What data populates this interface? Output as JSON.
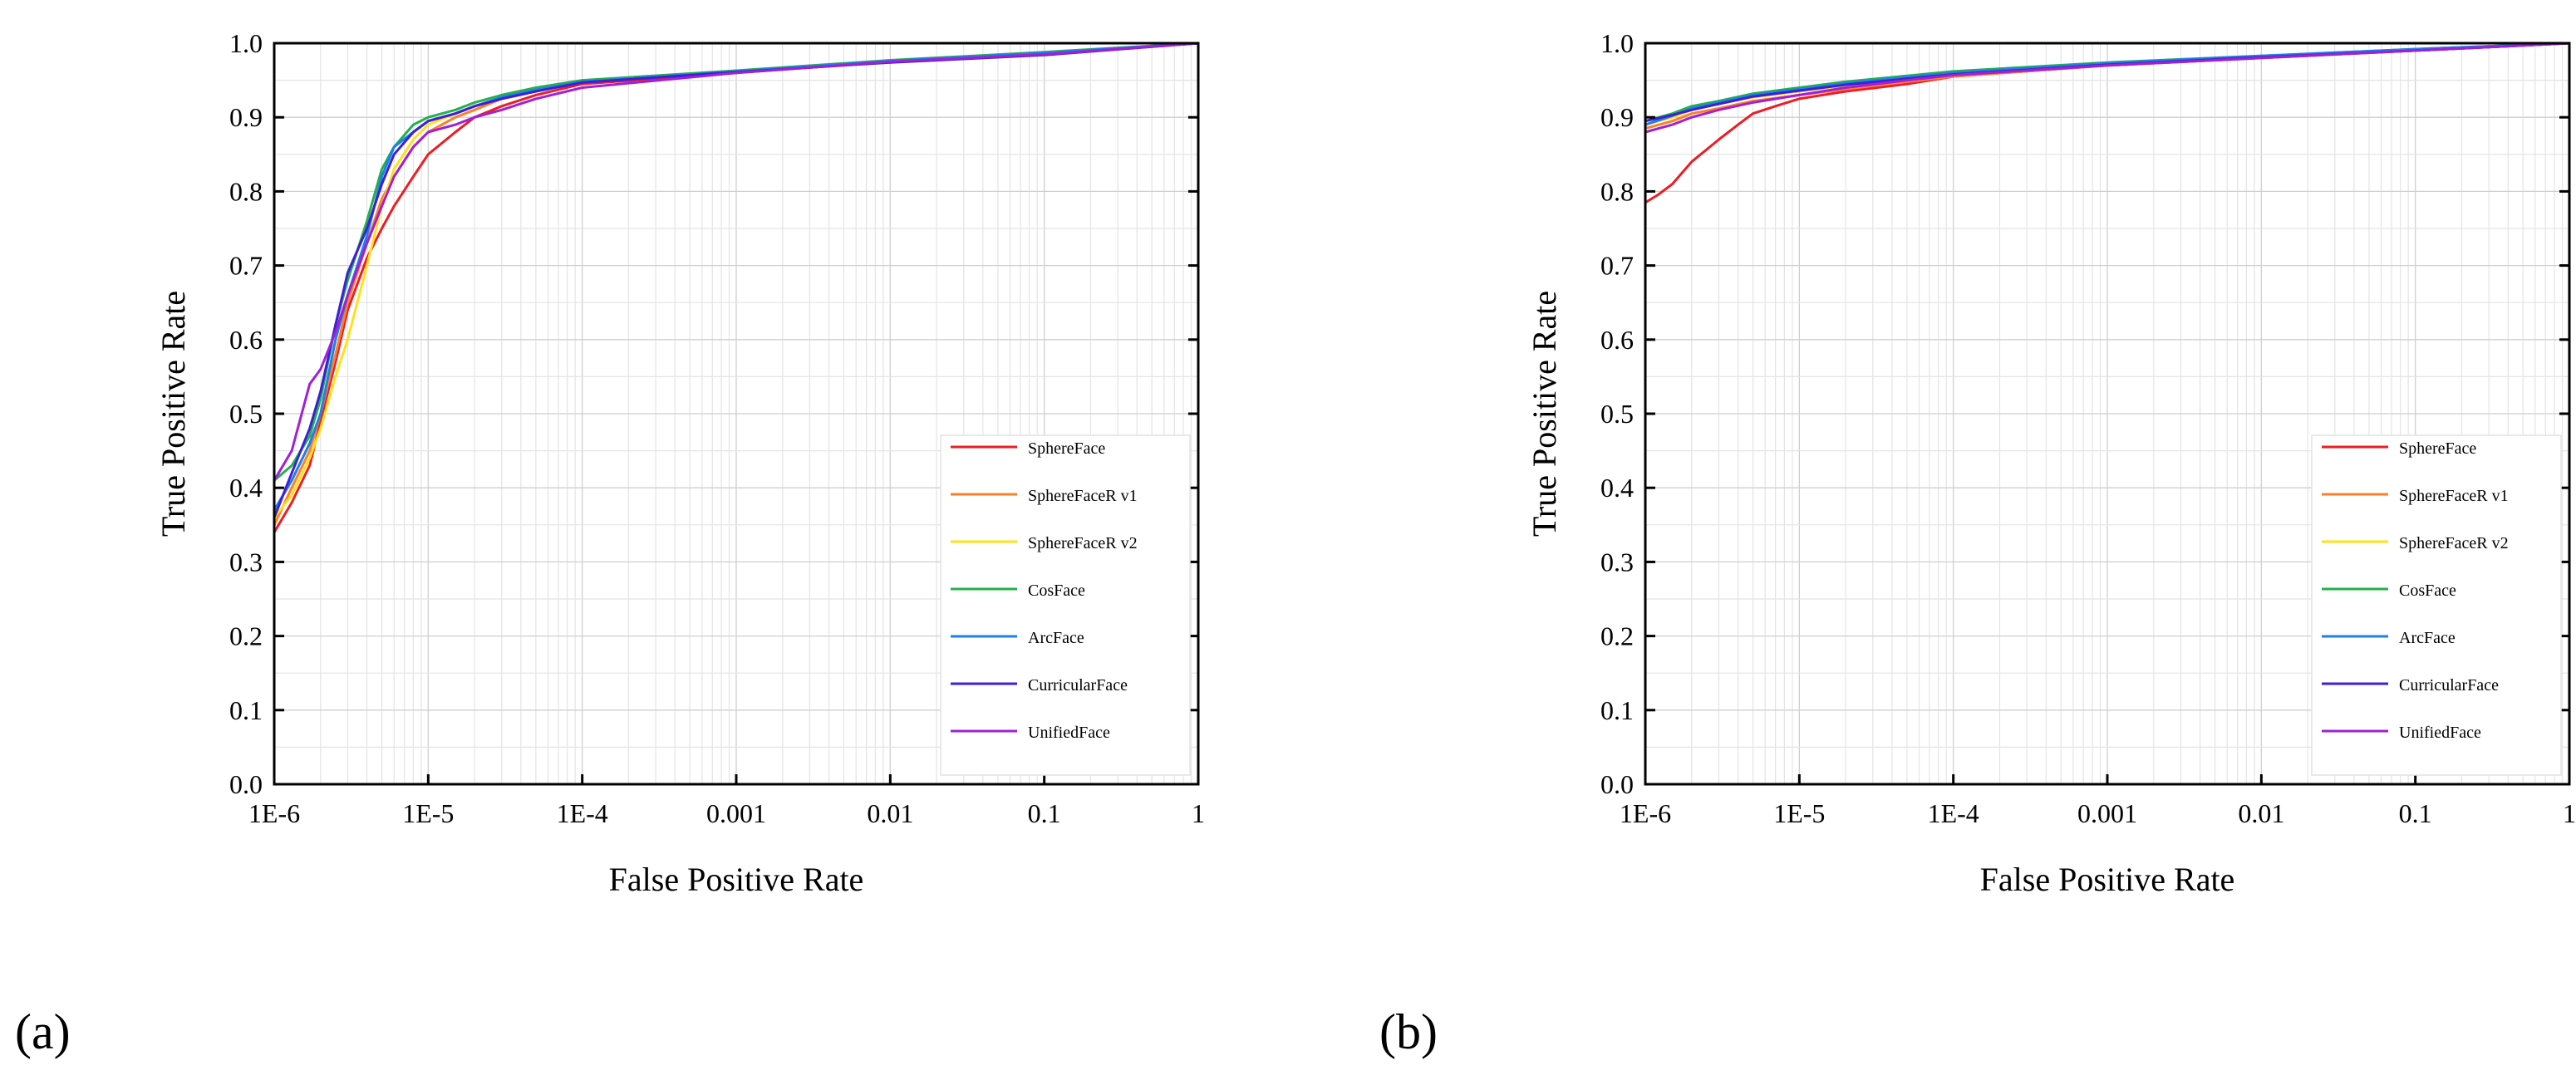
{
  "chart_data": [
    {
      "type": "line",
      "panel_label": "(a)",
      "xlabel": "False Positive Rate",
      "ylabel": "True Positive Rate",
      "xscale": "log",
      "xlim": [
        1e-06,
        1
      ],
      "ylim": [
        0.0,
        1.0
      ],
      "x_ticks": [
        {
          "value": 1e-06,
          "label": "1E-6"
        },
        {
          "value": 1e-05,
          "label": "1E-5"
        },
        {
          "value": 0.0001,
          "label": "1E-4"
        },
        {
          "value": 0.001,
          "label": "0.001"
        },
        {
          "value": 0.01,
          "label": "0.01"
        },
        {
          "value": 0.1,
          "label": "0.1"
        },
        {
          "value": 1,
          "label": "1"
        }
      ],
      "y_ticks": [
        {
          "value": 0.0,
          "label": "0.0"
        },
        {
          "value": 0.1,
          "label": "0.1"
        },
        {
          "value": 0.2,
          "label": "0.2"
        },
        {
          "value": 0.3,
          "label": "0.3"
        },
        {
          "value": 0.4,
          "label": "0.4"
        },
        {
          "value": 0.5,
          "label": "0.5"
        },
        {
          "value": 0.6,
          "label": "0.6"
        },
        {
          "value": 0.7,
          "label": "0.7"
        },
        {
          "value": 0.8,
          "label": "0.8"
        },
        {
          "value": 0.9,
          "label": "0.9"
        },
        {
          "value": 1.0,
          "label": "1.0"
        }
      ],
      "grid": true,
      "legend_position": "lower-right",
      "series": [
        {
          "name": "SphereFace",
          "color": "#ee1c25",
          "x": [
            1e-06,
            1.3e-06,
            1.7e-06,
            2e-06,
            2.5e-06,
            3e-06,
            4e-06,
            5e-06,
            6e-06,
            8e-06,
            1e-05,
            1.5e-05,
            2e-05,
            3e-05,
            5e-05,
            0.0001,
            0.001,
            0.01,
            0.1,
            1
          ],
          "y": [
            0.34,
            0.38,
            0.43,
            0.49,
            0.57,
            0.64,
            0.71,
            0.75,
            0.78,
            0.82,
            0.85,
            0.88,
            0.9,
            0.915,
            0.93,
            0.945,
            0.96,
            0.975,
            0.985,
            1.0
          ]
        },
        {
          "name": "SphereFaceR v1",
          "color": "#ff7f27",
          "x": [
            1e-06,
            1.3e-06,
            1.7e-06,
            2e-06,
            2.5e-06,
            3e-06,
            4e-06,
            5e-06,
            6e-06,
            8e-06,
            1e-05,
            1.5e-05,
            2e-05,
            3e-05,
            5e-05,
            0.0001,
            0.001,
            0.01,
            0.1,
            1
          ],
          "y": [
            0.35,
            0.4,
            0.45,
            0.5,
            0.58,
            0.65,
            0.73,
            0.79,
            0.82,
            0.86,
            0.88,
            0.9,
            0.91,
            0.925,
            0.935,
            0.948,
            0.962,
            0.975,
            0.985,
            1.0
          ]
        },
        {
          "name": "SphereFaceR v2",
          "color": "#ffe119",
          "x": [
            1e-06,
            1.3e-06,
            1.7e-06,
            2e-06,
            2.5e-06,
            3e-06,
            4e-06,
            5e-06,
            6e-06,
            8e-06,
            1e-05,
            1.5e-05,
            2e-05,
            3e-05,
            5e-05,
            0.0001,
            0.001,
            0.01,
            0.1,
            1
          ],
          "y": [
            0.36,
            0.39,
            0.44,
            0.48,
            0.55,
            0.6,
            0.7,
            0.78,
            0.83,
            0.87,
            0.89,
            0.905,
            0.915,
            0.925,
            0.936,
            0.948,
            0.962,
            0.975,
            0.985,
            1.0
          ]
        },
        {
          "name": "CosFace",
          "color": "#22b14c",
          "x": [
            1e-06,
            1.3e-06,
            1.7e-06,
            2e-06,
            2.5e-06,
            3e-06,
            4e-06,
            5e-06,
            6e-06,
            8e-06,
            1e-05,
            1.5e-05,
            2e-05,
            3e-05,
            5e-05,
            0.0001,
            0.001,
            0.01,
            0.1,
            1
          ],
          "y": [
            0.41,
            0.43,
            0.47,
            0.52,
            0.62,
            0.68,
            0.76,
            0.83,
            0.86,
            0.89,
            0.9,
            0.91,
            0.92,
            0.93,
            0.94,
            0.95,
            0.963,
            0.977,
            0.988,
            1.0
          ]
        },
        {
          "name": "ArcFace",
          "color": "#1e7fe8",
          "x": [
            1e-06,
            1.3e-06,
            1.7e-06,
            2e-06,
            2.5e-06,
            3e-06,
            4e-06,
            5e-06,
            6e-06,
            8e-06,
            1e-05,
            1.5e-05,
            2e-05,
            3e-05,
            5e-05,
            0.0001,
            0.001,
            0.01,
            0.1,
            1
          ],
          "y": [
            0.37,
            0.41,
            0.46,
            0.5,
            0.6,
            0.66,
            0.74,
            0.82,
            0.86,
            0.88,
            0.895,
            0.905,
            0.915,
            0.927,
            0.937,
            0.948,
            0.962,
            0.976,
            0.987,
            1.0
          ]
        },
        {
          "name": "CurricularFace",
          "color": "#3f1fd6",
          "x": [
            1e-06,
            1.3e-06,
            1.7e-06,
            2e-06,
            2.5e-06,
            3e-06,
            4e-06,
            5e-06,
            6e-06,
            8e-06,
            1e-05,
            1.5e-05,
            2e-05,
            3e-05,
            5e-05,
            0.0001,
            0.001,
            0.01,
            0.1,
            1
          ],
          "y": [
            0.36,
            0.42,
            0.48,
            0.53,
            0.62,
            0.69,
            0.75,
            0.81,
            0.85,
            0.88,
            0.895,
            0.905,
            0.915,
            0.925,
            0.935,
            0.947,
            0.961,
            0.974,
            0.984,
            1.0
          ]
        },
        {
          "name": "UnifiedFace",
          "color": "#a020d8",
          "x": [
            1e-06,
            1.3e-06,
            1.7e-06,
            2e-06,
            2.5e-06,
            3e-06,
            4e-06,
            5e-06,
            6e-06,
            8e-06,
            1e-05,
            1.5e-05,
            2e-05,
            3e-05,
            5e-05,
            0.0001,
            0.001,
            0.01,
            0.1,
            1
          ],
          "y": [
            0.41,
            0.45,
            0.54,
            0.56,
            0.61,
            0.66,
            0.73,
            0.78,
            0.82,
            0.86,
            0.88,
            0.89,
            0.9,
            0.91,
            0.925,
            0.94,
            0.96,
            0.975,
            0.985,
            1.0
          ]
        }
      ]
    },
    {
      "type": "line",
      "panel_label": "(b)",
      "xlabel": "False Positive Rate",
      "ylabel": "True Positive Rate",
      "xscale": "log",
      "xlim": [
        1e-06,
        1
      ],
      "ylim": [
        0.0,
        1.0
      ],
      "x_ticks": [
        {
          "value": 1e-06,
          "label": "1E-6"
        },
        {
          "value": 1e-05,
          "label": "1E-5"
        },
        {
          "value": 0.0001,
          "label": "1E-4"
        },
        {
          "value": 0.001,
          "label": "0.001"
        },
        {
          "value": 0.01,
          "label": "0.01"
        },
        {
          "value": 0.1,
          "label": "0.1"
        },
        {
          "value": 1,
          "label": "1"
        }
      ],
      "y_ticks": [
        {
          "value": 0.0,
          "label": "0.0"
        },
        {
          "value": 0.1,
          "label": "0.1"
        },
        {
          "value": 0.2,
          "label": "0.2"
        },
        {
          "value": 0.3,
          "label": "0.3"
        },
        {
          "value": 0.4,
          "label": "0.4"
        },
        {
          "value": 0.5,
          "label": "0.5"
        },
        {
          "value": 0.6,
          "label": "0.6"
        },
        {
          "value": 0.7,
          "label": "0.7"
        },
        {
          "value": 0.8,
          "label": "0.8"
        },
        {
          "value": 0.9,
          "label": "0.9"
        },
        {
          "value": 1.0,
          "label": "1.0"
        }
      ],
      "grid": true,
      "legend_position": "lower-right",
      "series": [
        {
          "name": "SphereFace",
          "color": "#ee1c25",
          "x": [
            1e-06,
            1.2e-06,
            1.5e-06,
            2e-06,
            3e-06,
            4e-06,
            5e-06,
            7e-06,
            1e-05,
            2e-05,
            5e-05,
            0.0001,
            0.001,
            0.01,
            0.1,
            1
          ],
          "y": [
            0.785,
            0.795,
            0.81,
            0.84,
            0.87,
            0.89,
            0.905,
            0.915,
            0.925,
            0.935,
            0.945,
            0.955,
            0.97,
            0.98,
            0.99,
            1.0
          ]
        },
        {
          "name": "SphereFaceR v1",
          "color": "#ff7f27",
          "x": [
            1e-06,
            1.5e-06,
            2e-06,
            3e-06,
            5e-06,
            1e-05,
            2e-05,
            5e-05,
            0.0001,
            0.001,
            0.01,
            0.1,
            1
          ],
          "y": [
            0.885,
            0.895,
            0.905,
            0.912,
            0.922,
            0.93,
            0.938,
            0.948,
            0.955,
            0.97,
            0.98,
            0.99,
            1.0
          ]
        },
        {
          "name": "SphereFaceR v2",
          "color": "#ffe119",
          "x": [
            1e-06,
            1.5e-06,
            2e-06,
            3e-06,
            5e-06,
            1e-05,
            2e-05,
            5e-05,
            0.0001,
            0.001,
            0.01,
            0.1,
            1
          ],
          "y": [
            0.89,
            0.9,
            0.91,
            0.918,
            0.927,
            0.935,
            0.943,
            0.952,
            0.958,
            0.972,
            0.982,
            0.991,
            1.0
          ]
        },
        {
          "name": "CosFace",
          "color": "#22b14c",
          "x": [
            1e-06,
            1.5e-06,
            2e-06,
            3e-06,
            5e-06,
            1e-05,
            2e-05,
            5e-05,
            0.0001,
            0.001,
            0.01,
            0.1,
            1
          ],
          "y": [
            0.895,
            0.905,
            0.915,
            0.922,
            0.932,
            0.94,
            0.948,
            0.956,
            0.962,
            0.974,
            0.983,
            0.992,
            1.0
          ]
        },
        {
          "name": "ArcFace",
          "color": "#1e7fe8",
          "x": [
            1e-06,
            1.5e-06,
            2e-06,
            3e-06,
            5e-06,
            1e-05,
            2e-05,
            5e-05,
            0.0001,
            0.001,
            0.01,
            0.1,
            1
          ],
          "y": [
            0.89,
            0.902,
            0.912,
            0.92,
            0.93,
            0.938,
            0.946,
            0.954,
            0.96,
            0.973,
            0.983,
            0.992,
            1.0
          ]
        },
        {
          "name": "CurricularFace",
          "color": "#3f1fd6",
          "x": [
            1e-06,
            1.5e-06,
            2e-06,
            3e-06,
            5e-06,
            1e-05,
            2e-05,
            5e-05,
            0.0001,
            0.001,
            0.01,
            0.1,
            1
          ],
          "y": [
            0.895,
            0.903,
            0.91,
            0.918,
            0.928,
            0.936,
            0.944,
            0.952,
            0.958,
            0.971,
            0.981,
            0.99,
            1.0
          ]
        },
        {
          "name": "UnifiedFace",
          "color": "#a020d8",
          "x": [
            1e-06,
            1.5e-06,
            2e-06,
            3e-06,
            5e-06,
            1e-05,
            2e-05,
            5e-05,
            0.0001,
            0.001,
            0.01,
            0.1,
            1
          ],
          "y": [
            0.88,
            0.89,
            0.9,
            0.91,
            0.92,
            0.93,
            0.94,
            0.95,
            0.957,
            0.97,
            0.98,
            0.99,
            1.0
          ]
        }
      ]
    }
  ]
}
